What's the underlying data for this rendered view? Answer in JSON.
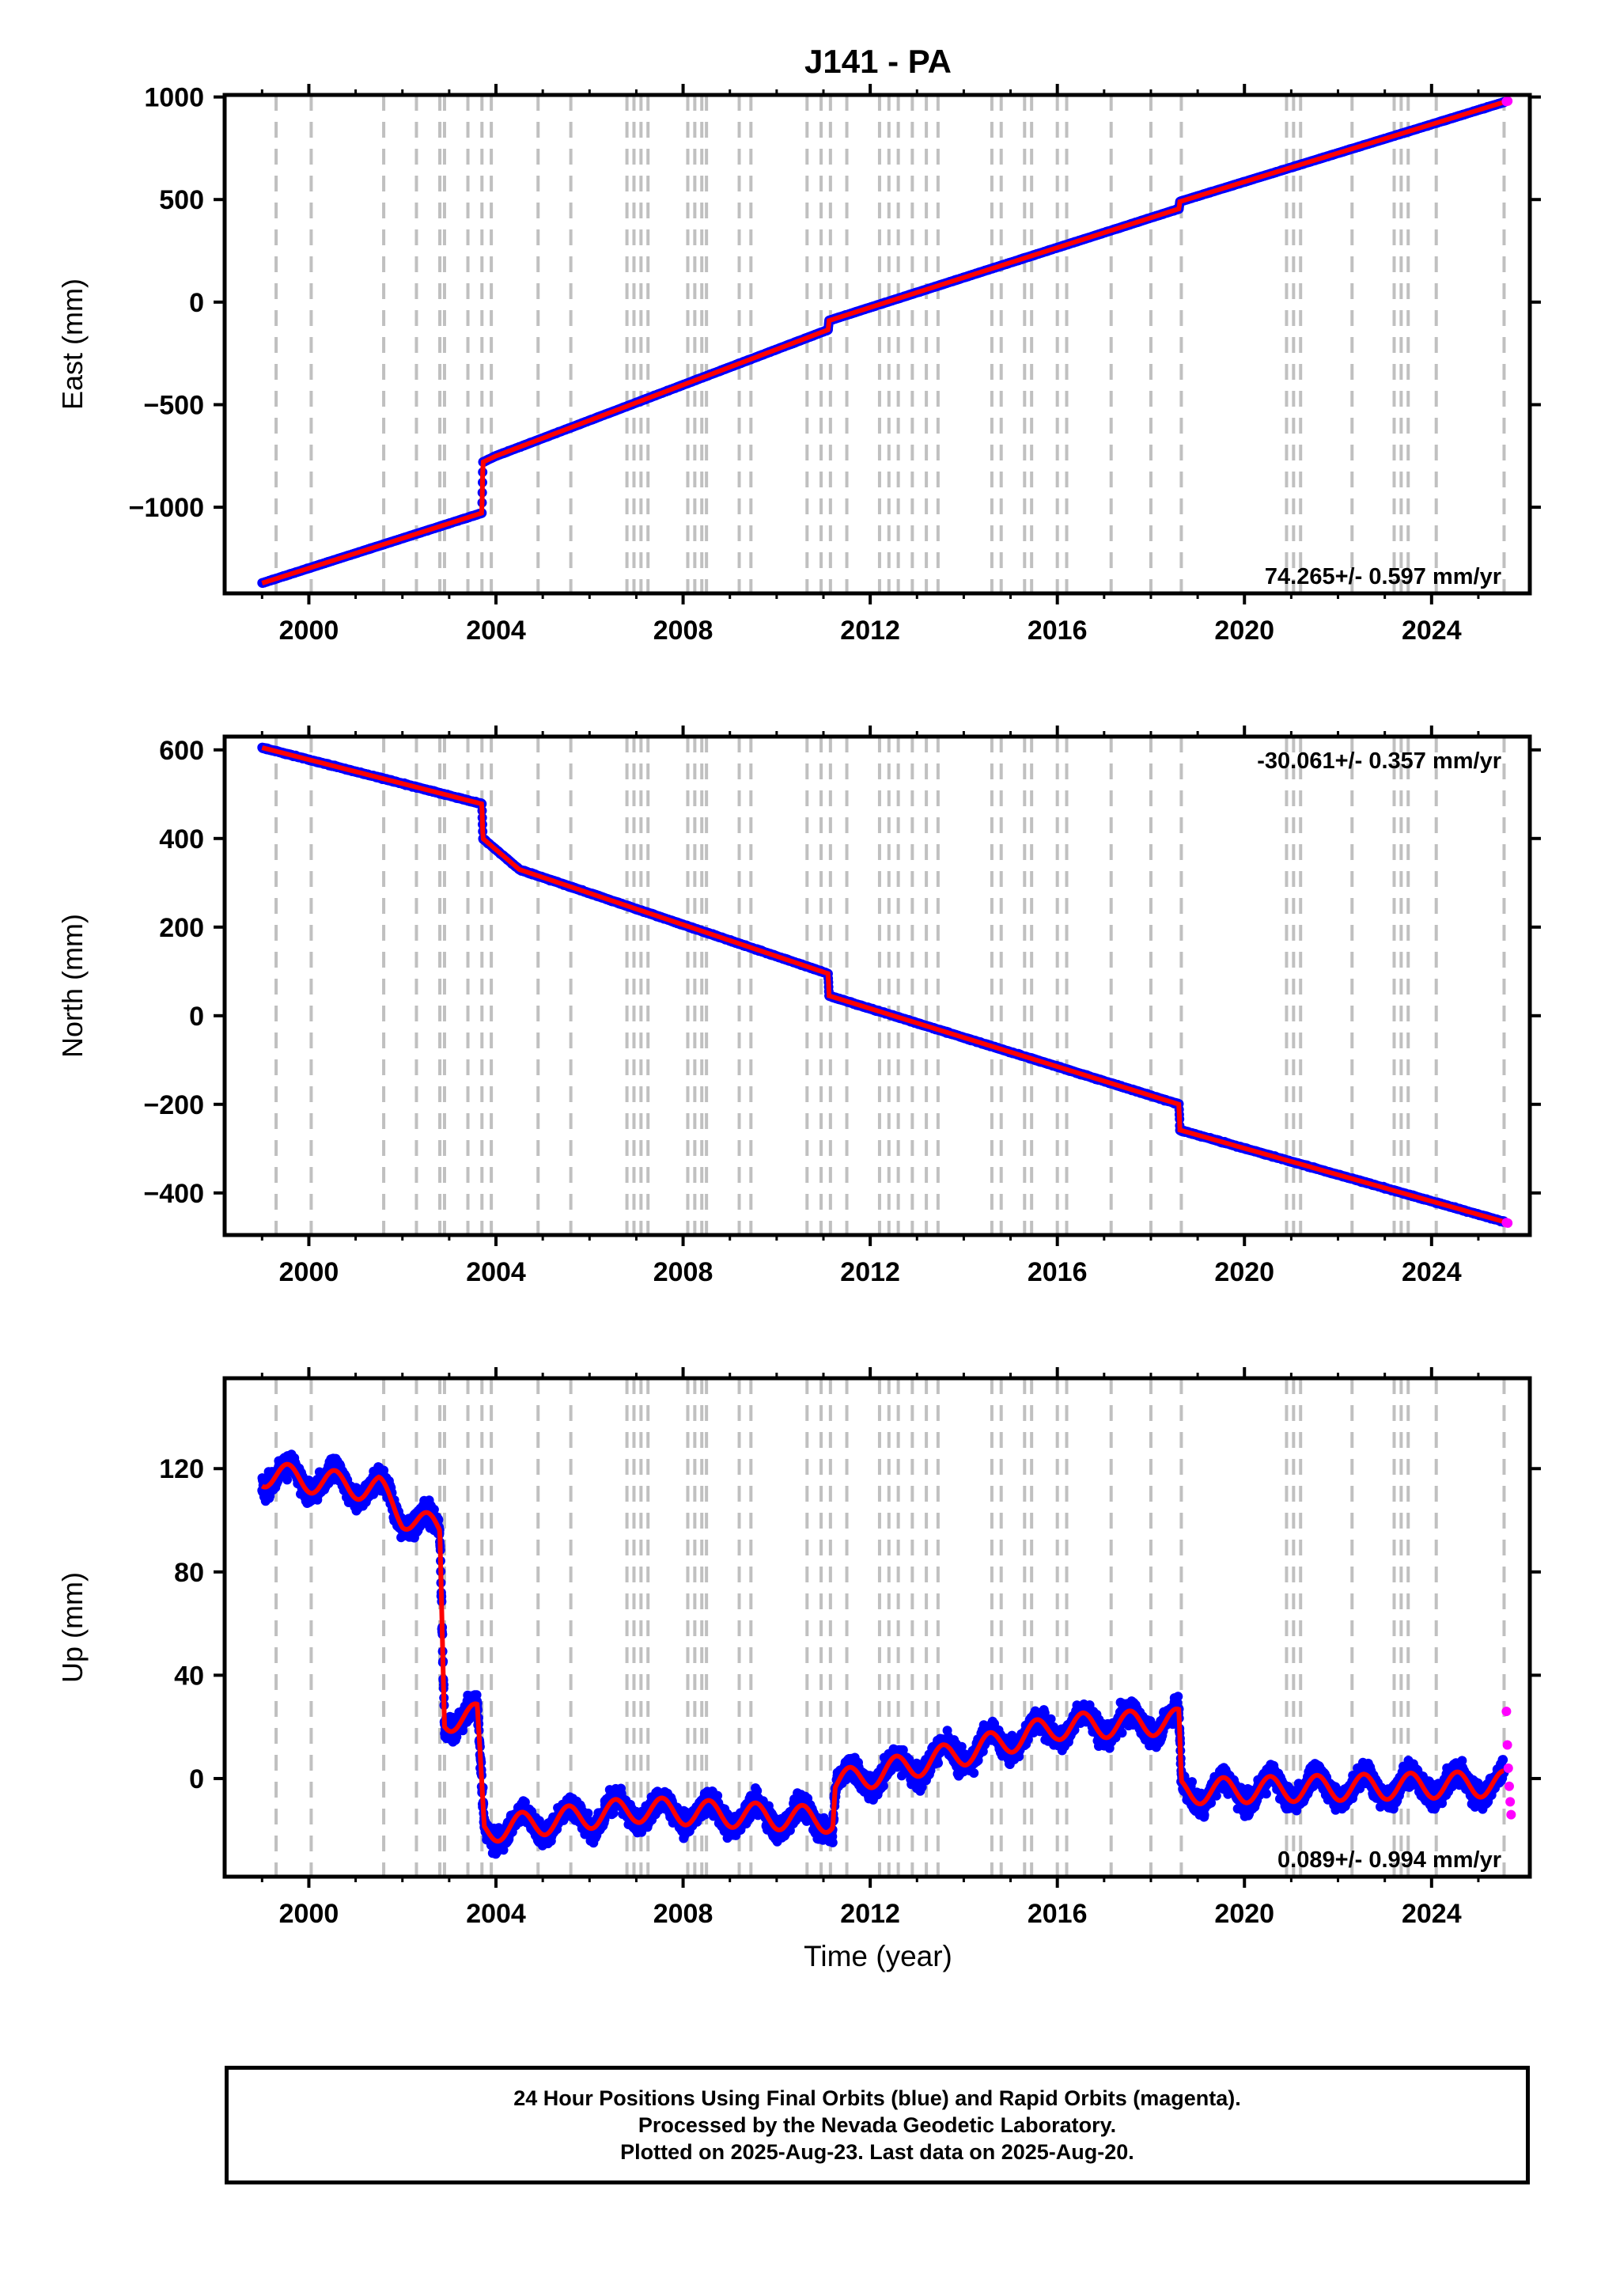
{
  "title": "J141 - PA",
  "xlabel": "Time (year)",
  "colors": {
    "final_orbits": "#0000ff",
    "rapid_orbits": "#ff00ff",
    "model": "#ff0000",
    "event_lines": "#c0c0c0"
  },
  "chart_data": [
    {
      "type": "scatter",
      "ylabel": "East (mm)",
      "xlim": [
        1998.2,
        2026.1
      ],
      "ylim": [
        -1420,
        1010
      ],
      "xticks": [
        2000,
        2004,
        2008,
        2012,
        2016,
        2020,
        2024
      ],
      "yticks": [
        -1000,
        -500,
        0,
        500,
        1000
      ],
      "rate_label": "74.265+/- 0.597 mm/yr",
      "rate_position": "bottom-right",
      "series": [
        {
          "name": "Final Orbits",
          "color": "#0000ff",
          "values": [
            [
              1999.0,
              -1370
            ],
            [
              2003.7,
              -1028
            ],
            [
              2003.72,
              -780
            ],
            [
              2004.0,
              -750
            ],
            [
              2011.1,
              -135
            ],
            [
              2011.12,
              -90
            ],
            [
              2018.6,
              455
            ],
            [
              2018.62,
              490
            ],
            [
              2025.55,
              975
            ]
          ]
        },
        {
          "name": "Rapid Orbits",
          "color": "#ff00ff",
          "values": [
            [
              2025.6,
              978
            ],
            [
              2025.63,
              980
            ]
          ]
        }
      ]
    },
    {
      "type": "scatter",
      "ylabel": "North (mm)",
      "xlim": [
        1998.2,
        2026.1
      ],
      "ylim": [
        -495,
        630
      ],
      "xticks": [
        2000,
        2004,
        2008,
        2012,
        2016,
        2020,
        2024
      ],
      "yticks": [
        -400,
        -200,
        0,
        200,
        400,
        600
      ],
      "rate_label": "-30.061+/- 0.357 mm/yr",
      "rate_position": "top-right",
      "series": [
        {
          "name": "Final Orbits",
          "color": "#0000ff",
          "values": [
            [
              1999.0,
              605
            ],
            [
              2003.7,
              478
            ],
            [
              2003.72,
              400
            ],
            [
              2004.5,
              330
            ],
            [
              2011.1,
              95
            ],
            [
              2011.12,
              45
            ],
            [
              2018.6,
              -200
            ],
            [
              2018.62,
              -258
            ],
            [
              2025.55,
              -465
            ]
          ]
        },
        {
          "name": "Rapid Orbits",
          "color": "#ff00ff",
          "values": [
            [
              2025.6,
              -467
            ],
            [
              2025.63,
              -468
            ]
          ]
        }
      ]
    },
    {
      "type": "scatter",
      "ylabel": "Up (mm)",
      "xlim": [
        1998.2,
        2026.1
      ],
      "ylim": [
        -38,
        155
      ],
      "xticks": [
        2000,
        2004,
        2008,
        2012,
        2016,
        2020,
        2024
      ],
      "yticks": [
        0,
        40,
        80,
        120
      ],
      "rate_label": "0.089+/- 0.994 mm/yr",
      "rate_position": "bottom-right",
      "series": [
        {
          "name": "Final Orbits",
          "color": "#0000ff",
          "values": [
            [
              1999.0,
              118
            ],
            [
              2001.5,
              112
            ],
            [
              2002.0,
              102
            ],
            [
              2002.8,
              96
            ],
            [
              2002.9,
              23
            ],
            [
              2003.6,
              24
            ],
            [
              2003.75,
              -20
            ],
            [
              2007.0,
              -12
            ],
            [
              2011.2,
              -16
            ],
            [
              2011.25,
              -2
            ],
            [
              2014.0,
              10
            ],
            [
              2016.0,
              20
            ],
            [
              2018.6,
              22
            ],
            [
              2018.65,
              -5
            ],
            [
              2025.55,
              -2
            ]
          ]
        },
        {
          "name": "Rapid Orbits",
          "color": "#ff00ff",
          "values": [
            [
              2025.6,
              26
            ],
            [
              2025.62,
              13
            ],
            [
              2025.64,
              4
            ],
            [
              2025.66,
              -3
            ],
            [
              2025.68,
              -9
            ],
            [
              2025.7,
              -14
            ]
          ]
        }
      ]
    }
  ],
  "event_lines": [
    1999.3,
    2000.05,
    2001.6,
    2002.3,
    2002.8,
    2002.9,
    2003.4,
    2003.7,
    2003.9,
    2004.9,
    2005.6,
    2006.8,
    2006.95,
    2007.1,
    2007.25,
    2008.1,
    2008.25,
    2008.4,
    2008.5,
    2009.2,
    2009.45,
    2010.65,
    2010.95,
    2011.15,
    2011.5,
    2012.2,
    2012.4,
    2012.6,
    2012.9,
    2013.2,
    2013.45,
    2014.6,
    2014.8,
    2015.3,
    2015.45,
    2016.0,
    2016.2,
    2017.15,
    2018.0,
    2018.65,
    2020.9,
    2021.05,
    2021.2,
    2022.3,
    2023.2,
    2023.35,
    2023.5,
    2024.1,
    2025.55
  ],
  "footer": {
    "line1": "24 Hour Positions Using Final Orbits (blue) and Rapid Orbits (magenta).",
    "line2": "Processed by the Nevada Geodetic Laboratory.",
    "line3": "Plotted on 2025-Aug-23. Last data on 2025-Aug-20."
  }
}
